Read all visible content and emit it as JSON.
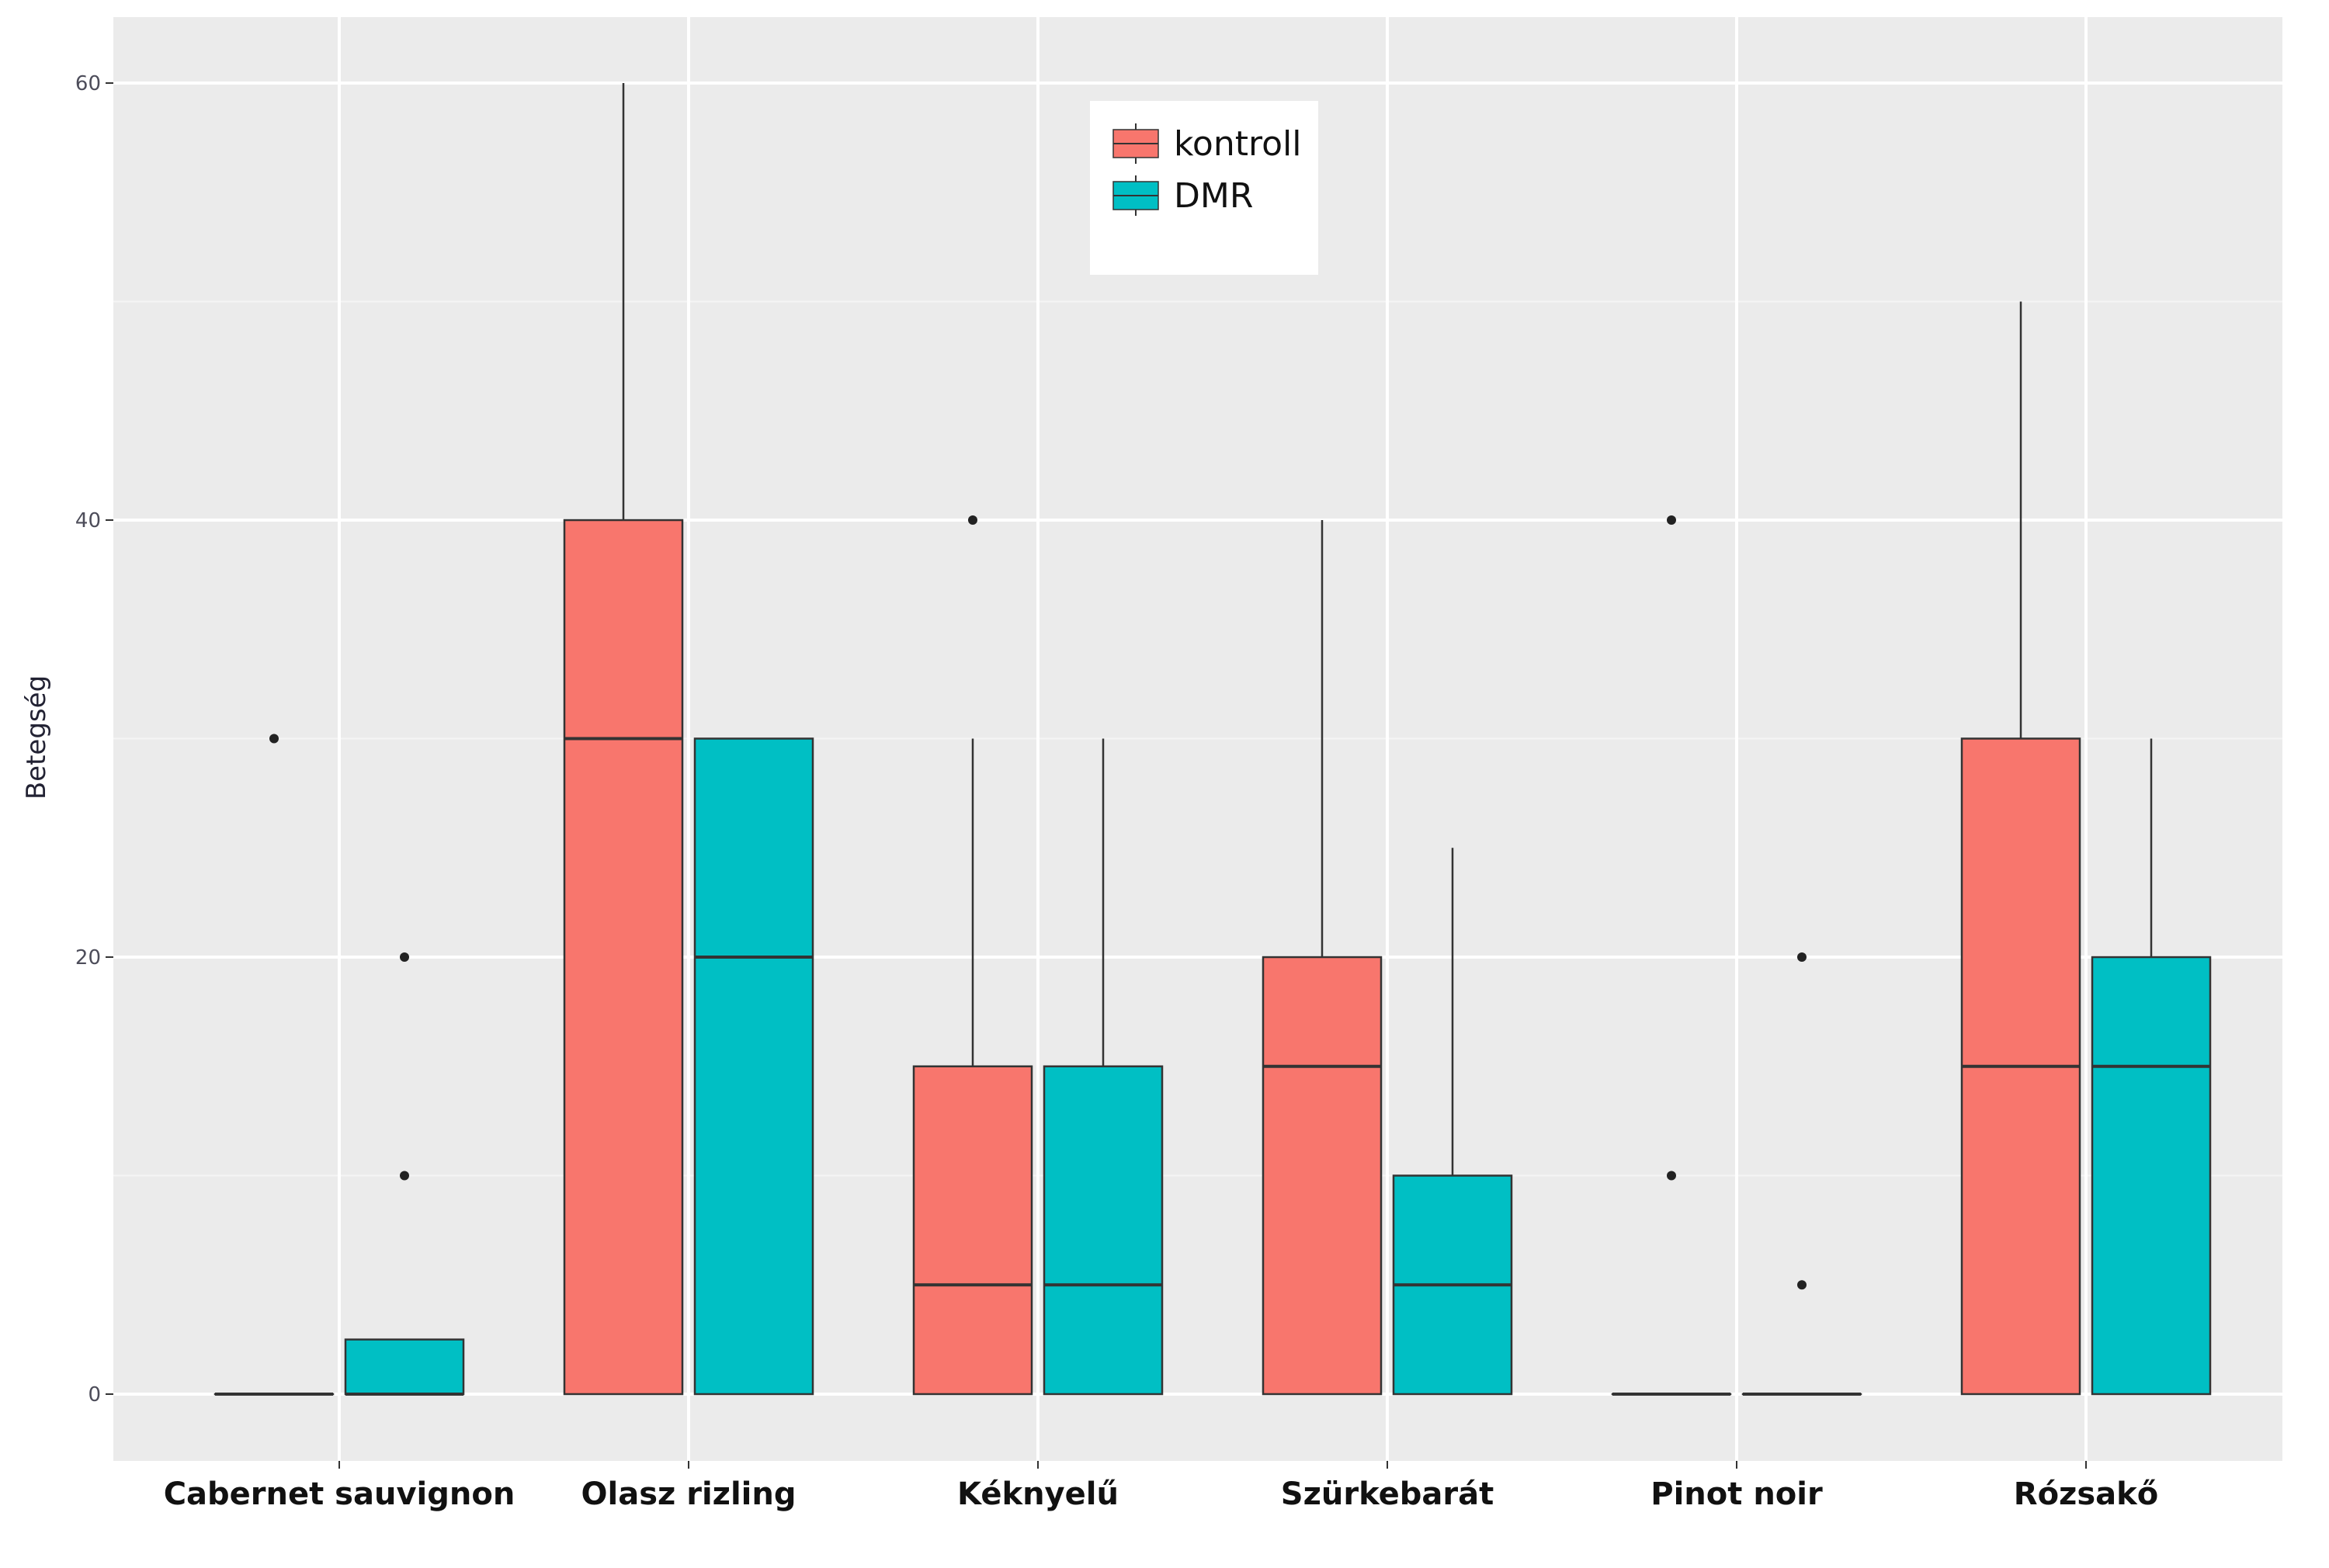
{
  "chart_data": {
    "type": "boxplot",
    "ylabel": "Betegség",
    "ylim": [
      -3,
      63
    ],
    "yticks": [
      0,
      20,
      40,
      60
    ],
    "ytick_labels": [
      "0",
      "20",
      "40",
      "60"
    ],
    "grid": true,
    "legend_position": "top-center",
    "categories": [
      "Cabernet sauvignon",
      "Olasz rizling",
      "Kéknyelű",
      "Szürkebarát",
      "Pinot noir",
      "Rózsakő"
    ],
    "series": [
      {
        "name": "kontroll",
        "color": "#F8766D",
        "boxes": [
          {
            "min": 0,
            "q1": 0,
            "median": 0,
            "q3": 0,
            "max": 0,
            "outliers": [
              30
            ]
          },
          {
            "min": 0,
            "q1": 0,
            "median": 30,
            "q3": 40,
            "max": 60,
            "outliers": []
          },
          {
            "min": 0,
            "q1": 0,
            "median": 5,
            "q3": 15,
            "max": 30,
            "outliers": [
              40
            ]
          },
          {
            "min": 0,
            "q1": 0,
            "median": 15,
            "q3": 20,
            "max": 40,
            "outliers": []
          },
          {
            "min": 0,
            "q1": 0,
            "median": 0,
            "q3": 0,
            "max": 0,
            "outliers": [
              10,
              40
            ]
          },
          {
            "min": 0,
            "q1": 0,
            "median": 15,
            "q3": 30,
            "max": 50,
            "outliers": []
          }
        ]
      },
      {
        "name": "DMR",
        "color": "#00BFC4",
        "boxes": [
          {
            "min": 0,
            "q1": 0,
            "median": 0,
            "q3": 2.5,
            "max": 2.5,
            "outliers": [
              10,
              20
            ]
          },
          {
            "min": 0,
            "q1": 0,
            "median": 20,
            "q3": 30,
            "max": 30,
            "outliers": []
          },
          {
            "min": 0,
            "q1": 0,
            "median": 5,
            "q3": 15,
            "max": 30,
            "outliers": []
          },
          {
            "min": 0,
            "q1": 0,
            "median": 5,
            "q3": 10,
            "max": 25,
            "outliers": []
          },
          {
            "min": 0,
            "q1": 0,
            "median": 0,
            "q3": 0,
            "max": 0,
            "outliers": [
              5,
              20
            ]
          },
          {
            "min": 0,
            "q1": 0,
            "median": 15,
            "q3": 20,
            "max": 30,
            "outliers": []
          }
        ]
      }
    ]
  }
}
